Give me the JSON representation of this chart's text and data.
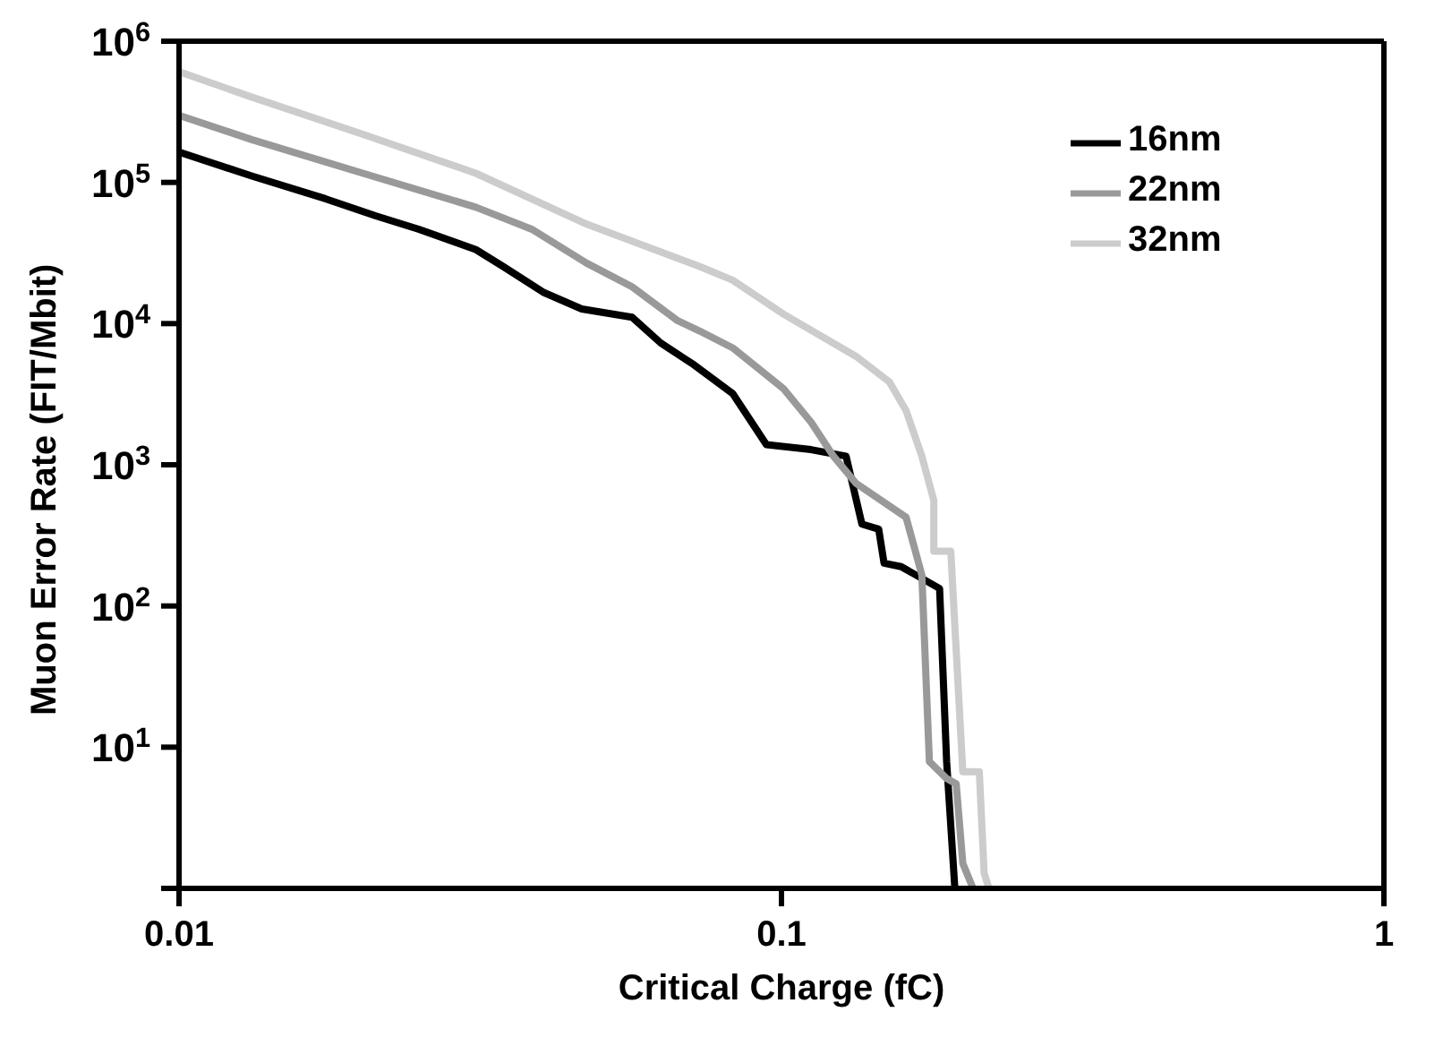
{
  "chart_data": {
    "type": "line",
    "xlabel": "Critical Charge (fC)",
    "ylabel": "Muon Error Rate (FIT/Mbit)",
    "log": "xy",
    "xlim": [
      0.01,
      1
    ],
    "xticks": [
      0.01,
      0.1,
      1
    ],
    "ylim": [
      1,
      1000000
    ],
    "yticks": [
      {
        "value": 1,
        "label": null
      },
      {
        "value": 10,
        "label": "10$^{1}$"
      },
      {
        "value": 100,
        "label": "10$^{2}$"
      },
      {
        "value": 1000,
        "label": "10$^{3}$"
      },
      {
        "value": 10000,
        "label": "10$^{4}$"
      },
      {
        "value": 100000,
        "label": "10$^{5}$"
      },
      {
        "value": 1000000,
        "label": "10$^{6}$"
      }
    ],
    "legend": "top right",
    "marker": "none",
    "line_style": "solid",
    "series": [
      {
        "name": "16nm",
        "color": "#000000",
        "x": [
          0.01,
          0.0132,
          0.0175,
          0.0212,
          0.025,
          0.0311,
          0.0345,
          0.0402,
          0.0466,
          0.0565,
          0.063,
          0.0716,
          0.083,
          0.0944,
          0.112,
          0.128,
          0.136,
          0.145,
          0.148,
          0.158,
          0.183,
          0.188,
          0.194
        ],
        "values": [
          164000,
          111000,
          76600,
          58000,
          46600,
          33400,
          25400,
          16700,
          12700,
          11100,
          7300,
          5100,
          3190,
          1390,
          1280,
          1150,
          380,
          350,
          201,
          190,
          133,
          7.9,
          1
        ]
      },
      {
        "name": "22nm",
        "color": "#999999",
        "x": [
          0.01,
          0.0132,
          0.0202,
          0.0311,
          0.0385,
          0.0475,
          0.0565,
          0.0672,
          0.0731,
          0.083,
          0.1007,
          0.112,
          0.122,
          0.133,
          0.161,
          0.168,
          0.171,
          0.176,
          0.188,
          0.195,
          0.2,
          0.208
        ],
        "values": [
          299000,
          201000,
          116000,
          66700,
          46600,
          26800,
          18200,
          10500,
          8870,
          6730,
          3470,
          2000,
          1150,
          738,
          425,
          219,
          166,
          7.9,
          6,
          5.5,
          1.5,
          1
        ]
      },
      {
        "name": "32nm",
        "color": "#cccccc",
        "x": [
          0.01,
          0.0132,
          0.0202,
          0.0311,
          0.0475,
          0.0731,
          0.083,
          0.1007,
          0.133,
          0.151,
          0.161,
          0.171,
          0.179,
          0.179,
          0.191,
          0.2,
          0.213,
          0.217,
          0.221
        ],
        "values": [
          608000,
          402000,
          219000,
          116000,
          50600,
          25400,
          20300,
          11700,
          5860,
          3870,
          2420,
          1150,
          560,
          244,
          244,
          6.7,
          6.7,
          1.28,
          1
        ]
      }
    ]
  }
}
